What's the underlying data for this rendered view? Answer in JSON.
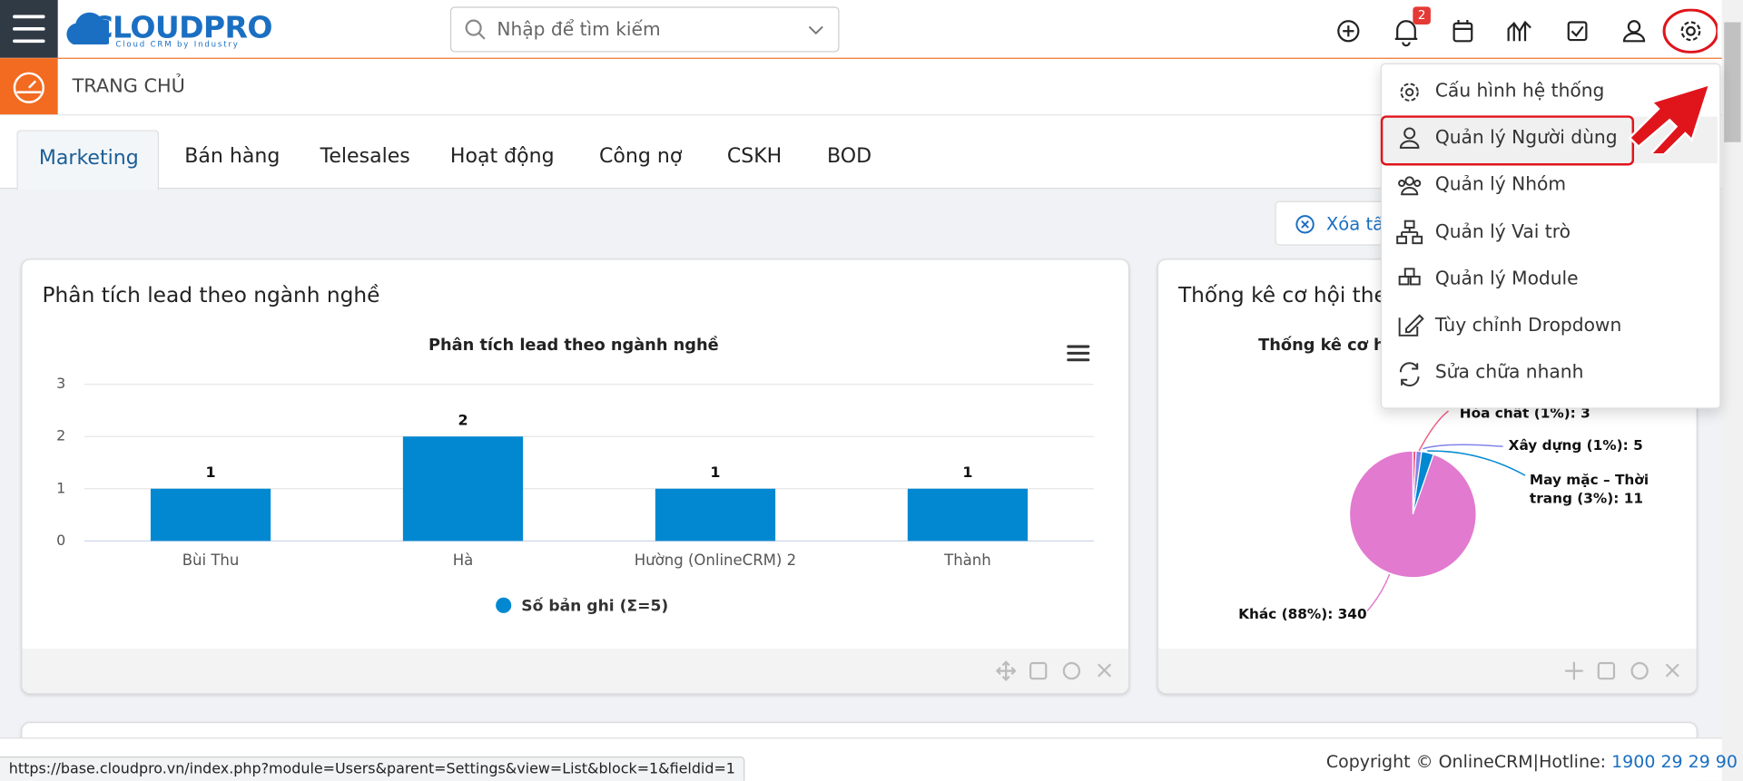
{
  "header": {
    "logo": "CLOUDPRO",
    "logo_tagline": "Cloud CRM by Industry",
    "search_placeholder": "Nhập để tìm kiếm",
    "notification_count": 2
  },
  "breadcrumb": "TRANG CHỦ",
  "tabs": [
    "Marketing",
    "Bán hàng",
    "Telesales",
    "Hoạt động",
    "Công nợ",
    "CSKH",
    "BOD"
  ],
  "filter_button": "Xóa tấ",
  "widgets": [
    {
      "title": "Phân tích lead theo ngành nghề"
    },
    {
      "title": "Thống kê cơ hội the"
    }
  ],
  "chart_data": [
    {
      "type": "bar",
      "title": "Phân tích lead theo ngành nghề",
      "categories": [
        "Bùi Thu",
        "Hà",
        "Hường (OnlineCRM) 2",
        "Thành"
      ],
      "series": [
        {
          "name": "Số bản ghi (Σ=5)",
          "color": "#0288d1",
          "values": [
            1,
            2,
            1,
            1
          ]
        }
      ],
      "ylim": [
        0,
        3
      ],
      "yticks": [
        0,
        1,
        2,
        3
      ],
      "grid": true,
      "legend": "bottom"
    },
    {
      "type": "pie",
      "title": "Thống kê cơ hộ",
      "categories": [
        "Hóa chất",
        "Xây dựng",
        "May mặc – Thời trang",
        "Khác"
      ],
      "values": [
        3,
        5,
        11,
        340
      ],
      "value_labels": [
        "Hóa chất (1%): 3",
        "Xây dựng (1%): 5",
        "May mặc – Thời trang (3%): 11",
        "Khác (88%): 340"
      ],
      "colors": [
        "#f15c80",
        "#8085e9",
        "#0288d1",
        "#e27ad0"
      ]
    }
  ],
  "settings_menu": [
    "Cấu hình hệ thống",
    "Quản lý Người dùng",
    "Quản lý Nhóm",
    "Quản lý Vai trò",
    "Quản lý Module",
    "Tùy chỉnh Dropdown",
    "Sửa chữa nhanh"
  ],
  "footer": {
    "copyright": "Copyright © OnlineCRM",
    "hotline_label": "Hotline:",
    "hotline": "1900 29 29 90"
  },
  "status_url": "https://base.cloudpro.vn/index.php?module=Users&parent=Settings&view=List&block=1&fieldid=1"
}
